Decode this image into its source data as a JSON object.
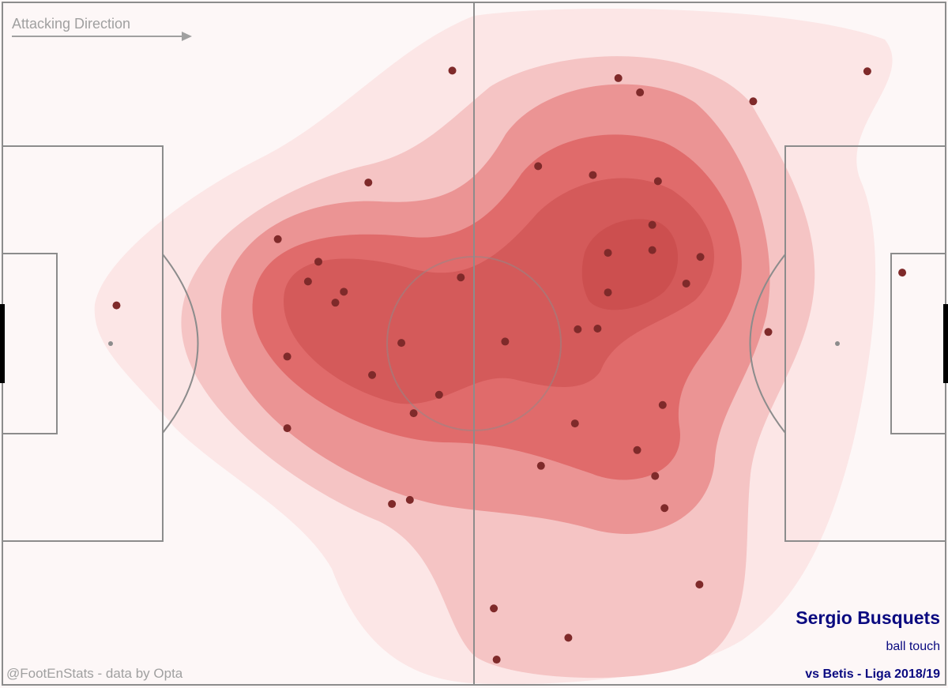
{
  "chart_data": {
    "type": "scatter",
    "title": "Sergio Busquets",
    "subtitle": "ball touch",
    "caption": "vs Betis - Liga 2018/19",
    "annotation": "Attacking Direction",
    "credit": "@FootEnStats - data by Opta",
    "color": "#7f2a2a",
    "xlim": [
      0,
      100
    ],
    "ylim": [
      0,
      100
    ],
    "x": [
      47.7,
      65.3,
      67.6,
      79.6,
      91.7,
      38.8,
      56.8,
      62.6,
      69.5,
      29.2,
      33.5,
      32.4,
      36.2,
      35.3,
      48.6,
      68.9,
      64.2,
      68.9,
      74.0,
      72.5,
      64.2,
      95.4,
      12.1,
      81.2,
      61.0,
      63.1,
      53.3,
      42.3,
      30.2,
      39.2,
      46.3,
      43.6,
      30.2,
      70.0,
      60.7,
      67.3,
      57.1,
      69.2,
      43.2,
      41.3,
      70.2,
      73.9,
      52.1,
      60.0,
      52.4
    ],
    "y": [
      90.0,
      88.9,
      86.8,
      85.5,
      89.9,
      73.6,
      76.0,
      74.7,
      73.8,
      65.3,
      62.0,
      59.1,
      57.6,
      56.0,
      59.7,
      67.4,
      63.3,
      63.7,
      62.7,
      58.8,
      57.5,
      60.4,
      55.6,
      51.7,
      52.1,
      52.2,
      50.3,
      50.1,
      48.1,
      45.4,
      42.5,
      39.8,
      37.6,
      41.0,
      38.3,
      34.4,
      32.1,
      30.6,
      27.1,
      26.5,
      25.9,
      14.7,
      11.2,
      6.9,
      3.7
    ]
  }
}
